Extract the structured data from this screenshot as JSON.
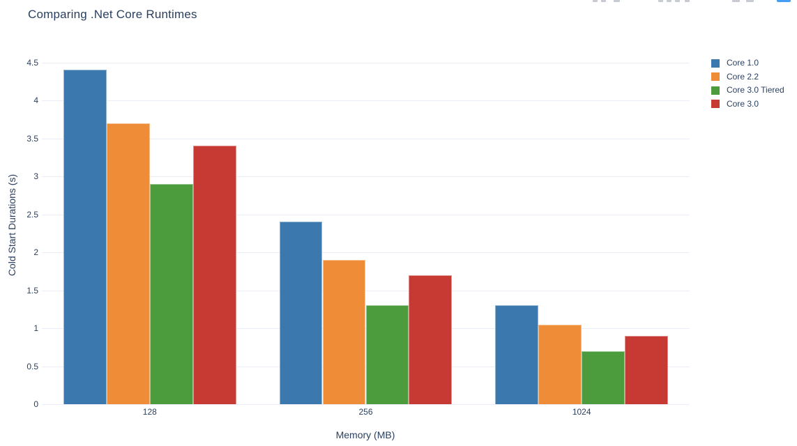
{
  "page": {
    "title": "Comparing .Net Core Runtimes"
  },
  "modebar": {
    "note": "plotly modebar clipped at top edge",
    "plotly_logo_color": "#459df5"
  },
  "chart_data": {
    "type": "bar",
    "mode": "grouped",
    "title": "Comparing .Net Core Runtimes",
    "categories": [
      "128",
      "256",
      "1024"
    ],
    "series": [
      {
        "name": "Core 1.0",
        "color": "#3a78ae",
        "values": [
          4.4,
          2.4,
          1.3
        ]
      },
      {
        "name": "Core 2.2",
        "color": "#ef8c38",
        "values": [
          3.7,
          1.9,
          1.05
        ]
      },
      {
        "name": "Core 3.0 Tiered",
        "color": "#4c9c3e",
        "values": [
          2.9,
          1.3,
          0.7
        ]
      },
      {
        "name": "Core 3.0",
        "color": "#c63a33",
        "values": [
          3.4,
          1.7,
          0.9
        ]
      }
    ],
    "xlabel": "Memory (MB)",
    "ylabel": "Cold Start Durations (s)",
    "ylim": [
      0,
      4.5
    ],
    "ytick_step": 0.5,
    "grid": true,
    "gridcolor": "#e9eef6",
    "text_color": "#2a3f5f",
    "legend_position": "right"
  }
}
